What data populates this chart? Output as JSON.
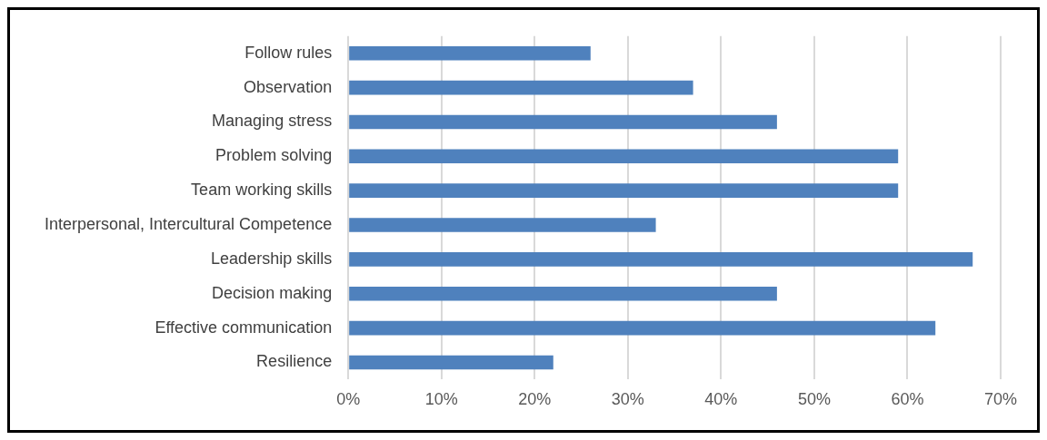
{
  "chart_data": {
    "type": "bar",
    "orientation": "horizontal",
    "categories": [
      "Follow rules",
      "Observation",
      "Managing stress",
      "Problem solving",
      "Team working skills",
      "Interpersonal, Intercultural Competence",
      "Leadership skills",
      "Decision making",
      "Effective communication",
      "Resilience"
    ],
    "values": [
      26,
      37,
      46,
      59,
      59,
      33,
      67,
      46,
      63,
      22
    ],
    "color": "#4f81bd",
    "xlim": [
      0,
      70
    ],
    "xticks": [
      {
        "value": 0,
        "label": "0%"
      },
      {
        "value": 10,
        "label": "10%"
      },
      {
        "value": 20,
        "label": "20%"
      },
      {
        "value": 30,
        "label": "30%"
      },
      {
        "value": 40,
        "label": "40%"
      },
      {
        "value": 50,
        "label": "50%"
      },
      {
        "value": 60,
        "label": "60%"
      },
      {
        "value": 70,
        "label": "70%"
      }
    ],
    "grid": "x"
  }
}
